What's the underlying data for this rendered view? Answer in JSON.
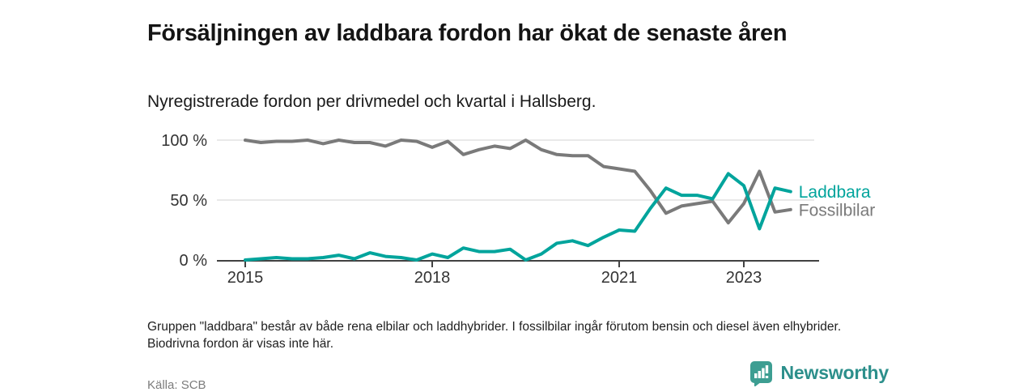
{
  "header": {
    "title": "Försäljningen av laddbara fordon har ökat de senaste åren",
    "subtitle": "Nyregistrerade fordon per drivmedel och kvartal i Hallsberg."
  },
  "chart_data": {
    "type": "line",
    "title": "",
    "xlabel": "",
    "ylabel": "",
    "ylim": [
      0,
      100
    ],
    "grid": "horizontal",
    "legend_position": "right-end-labels",
    "categories": [
      "2015 Q1",
      "2015 Q2",
      "2015 Q3",
      "2015 Q4",
      "2016 Q1",
      "2016 Q2",
      "2016 Q3",
      "2016 Q4",
      "2017 Q1",
      "2017 Q2",
      "2017 Q3",
      "2017 Q4",
      "2018 Q1",
      "2018 Q2",
      "2018 Q3",
      "2018 Q4",
      "2019 Q1",
      "2019 Q2",
      "2019 Q3",
      "2019 Q4",
      "2020 Q1",
      "2020 Q2",
      "2020 Q3",
      "2020 Q4",
      "2021 Q1",
      "2021 Q2",
      "2021 Q3",
      "2021 Q4",
      "2022 Q1",
      "2022 Q2",
      "2022 Q3",
      "2022 Q4",
      "2023 Q1",
      "2023 Q2",
      "2023 Q3",
      "2023 Q4"
    ],
    "yticks": [
      {
        "label": "0 %",
        "value": 0
      },
      {
        "label": "50 %",
        "value": 50
      },
      {
        "label": "100 %",
        "value": 100
      }
    ],
    "xticks": [
      {
        "label": "2015",
        "index": 0
      },
      {
        "label": "2018",
        "index": 12
      },
      {
        "label": "2021",
        "index": 24
      },
      {
        "label": "2023",
        "index": 32
      }
    ],
    "series": [
      {
        "name": "Laddbara",
        "color": "#00a49c",
        "values": [
          0,
          1,
          2,
          1,
          1,
          2,
          4,
          1,
          6,
          3,
          2,
          0,
          5,
          2,
          10,
          7,
          7,
          9,
          0,
          5,
          14,
          16,
          12,
          19,
          25,
          24,
          43,
          60,
          54,
          54,
          51,
          72,
          62,
          26,
          60,
          57
        ]
      },
      {
        "name": "Fossilbilar",
        "color": "#7a7a7a",
        "values": [
          100,
          98,
          99,
          99,
          100,
          97,
          100,
          98,
          98,
          95,
          100,
          99,
          94,
          99,
          88,
          92,
          95,
          93,
          100,
          92,
          88,
          87,
          87,
          78,
          76,
          74,
          58,
          39,
          45,
          47,
          49,
          31,
          47,
          74,
          40,
          42
        ]
      }
    ]
  },
  "footnote": "Gruppen \"laddbara\" består av både rena elbilar och laddhybrider. I fossilbilar ingår förutom bensin och diesel även elhybrider. Biodrivna fordon är visas inte här.",
  "footer": {
    "source": "Källa: SCB",
    "brand": "Newsworthy"
  },
  "colors": {
    "accent_teal": "#00a49c",
    "neutral_gray": "#7a7a7a",
    "axis": "#424242",
    "gridline": "#dcdcdc",
    "brand_teal": "#2c8f8b"
  }
}
